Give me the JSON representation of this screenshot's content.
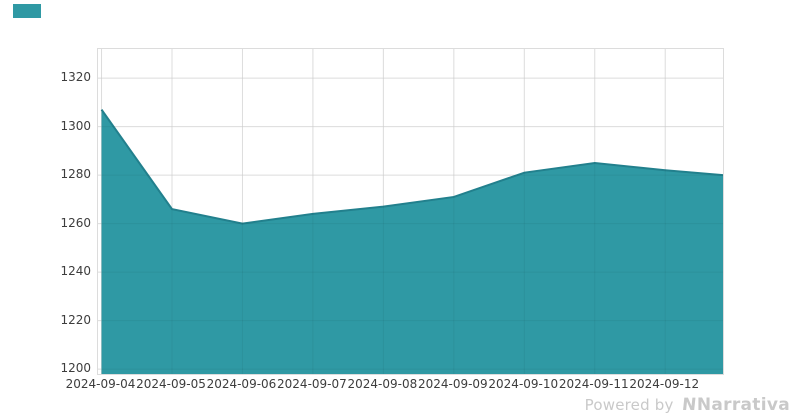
{
  "page": {
    "background": "#ffffff"
  },
  "legend_swatch": {
    "color": "#2f99a4"
  },
  "watermark": {
    "prefix": "Powered by",
    "logo": "N",
    "brand": "Narrativa",
    "color": "#c9c9c9"
  },
  "chart_data": {
    "type": "area",
    "title": "",
    "xlabel": "",
    "ylabel": "",
    "x": [
      "2024-09-04",
      "2024-09-05",
      "2024-09-06",
      "2024-09-07",
      "2024-09-08",
      "2024-09-09",
      "2024-09-10",
      "2024-09-11",
      "2024-09-12"
    ],
    "values": [
      1307,
      1266,
      1260,
      1264,
      1267,
      1271,
      1281,
      1285,
      1282
    ],
    "edge_point": {
      "x_offset_days": 8.82,
      "value": 1280
    },
    "x_range_days": [
      -0.05,
      8.82
    ],
    "ylim": [
      1198,
      1332
    ],
    "yticks": [
      1200,
      1220,
      1240,
      1260,
      1280,
      1300,
      1320
    ],
    "grid": true,
    "legend_position": "none",
    "fill_color": "#2f99a4",
    "line_color": "#22808d",
    "grid_color": "#e8e8e8",
    "tick_color": "#3d3d3d"
  }
}
